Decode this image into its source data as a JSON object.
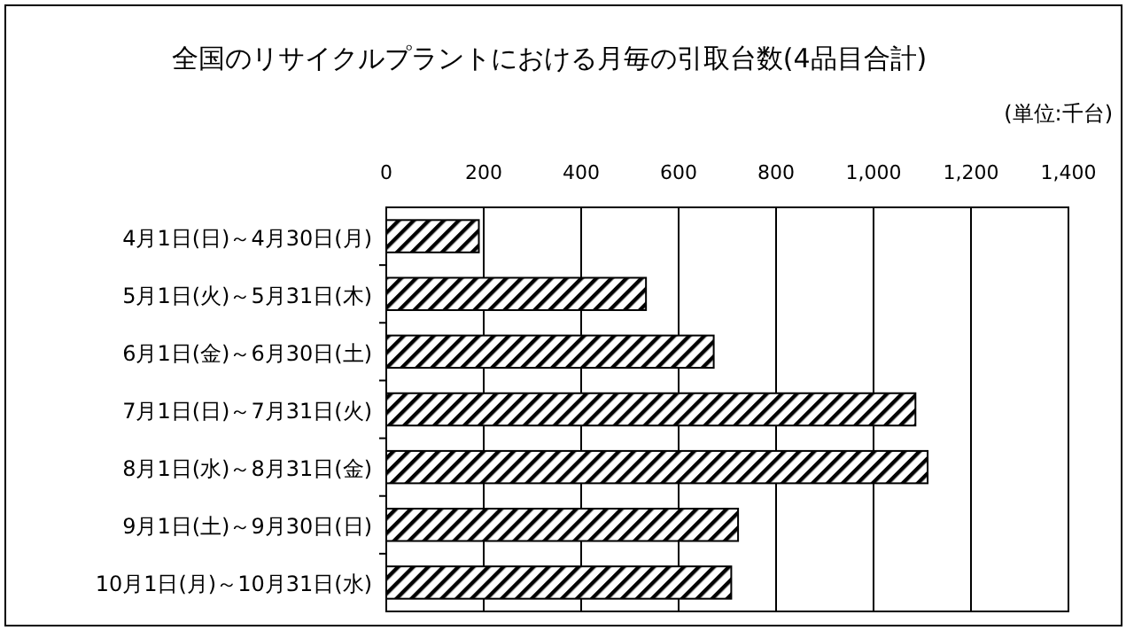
{
  "chart_data": {
    "type": "bar",
    "orientation": "horizontal",
    "title": "全国のリサイクルプラントにおける月毎の引取台数(4品目合計)",
    "annotations": [
      "(単位:千台)"
    ],
    "categories": [
      "4月1日(日)～4月30日(月)",
      "5月1日(火)～5月31日(木)",
      "6月1日(金)～6月30日(土)",
      "7月1日(日)～7月31日(火)",
      "8月1日(水)～8月31日(金)",
      "9月1日(土)～9月30日(日)",
      "10月1日(月)～10月31日(水)"
    ],
    "values": [
      190,
      533,
      672,
      1086,
      1111,
      722,
      708
    ],
    "color": "#000000",
    "xlim": [
      0,
      1400
    ],
    "xticks": [
      0,
      {
        "value": 200,
        "label": "200"
      },
      {
        "value": 400,
        "label": "400"
      },
      {
        "value": 600,
        "label": "600"
      },
      {
        "value": 800,
        "label": "800"
      },
      {
        "value": 1000,
        "label": "1,000"
      },
      {
        "value": 1200,
        "label": "1,200"
      },
      {
        "value": 1400,
        "label": "1,400"
      }
    ],
    "grid": "x"
  }
}
